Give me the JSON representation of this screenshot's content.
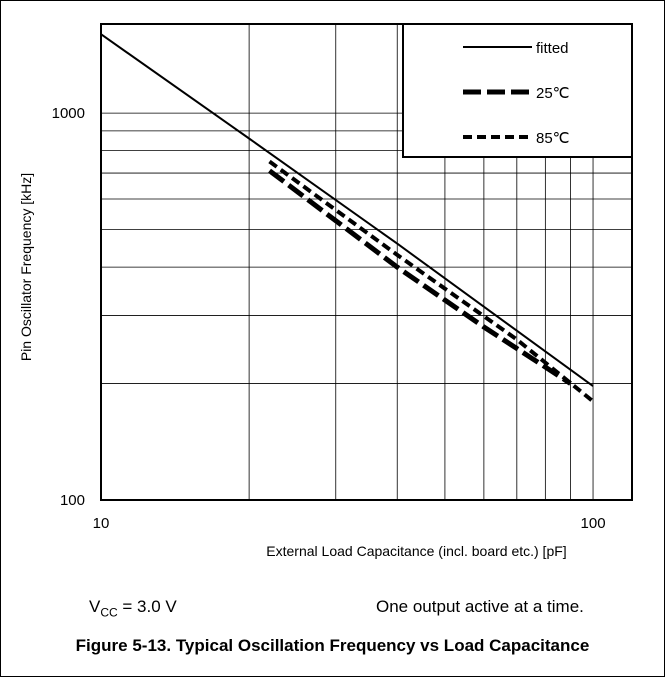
{
  "chart_data": {
    "type": "line",
    "scale": "log-log",
    "xlabel": "External Load Capacitance (incl. board etc.) [pF]",
    "ylabel": "Pin Oscillator Frequency [kHz]",
    "xlim": [
      10,
      120
    ],
    "ylim": [
      100,
      1700
    ],
    "x_ticks": [
      10,
      100
    ],
    "y_ticks": [
      100,
      1000
    ],
    "grid": true,
    "legend": {
      "position": "top-right",
      "entries": [
        "fitted",
        "25℃",
        "85℃"
      ]
    },
    "series": [
      {
        "name": "fitted",
        "style": "solid",
        "points": [
          [
            10,
            1600
          ],
          [
            20,
            860
          ],
          [
            40,
            460
          ],
          [
            100,
            197
          ]
        ]
      },
      {
        "name": "25℃",
        "style": "long-dash",
        "points": [
          [
            22,
            710
          ],
          [
            40,
            400
          ],
          [
            60,
            280
          ],
          [
            90,
            200
          ]
        ]
      },
      {
        "name": "85℃",
        "style": "short-dash",
        "points": [
          [
            22,
            750
          ],
          [
            40,
            430
          ],
          [
            70,
            260
          ],
          [
            101,
            178
          ]
        ]
      }
    ]
  },
  "notes": {
    "vcc_prefix": "V",
    "vcc_sub": "CC",
    "vcc_suffix": " = 3.0 V",
    "right": "One output active at a time."
  },
  "caption": "Figure 5-13. Typical Oscillation Frequency vs Load Capacitance"
}
